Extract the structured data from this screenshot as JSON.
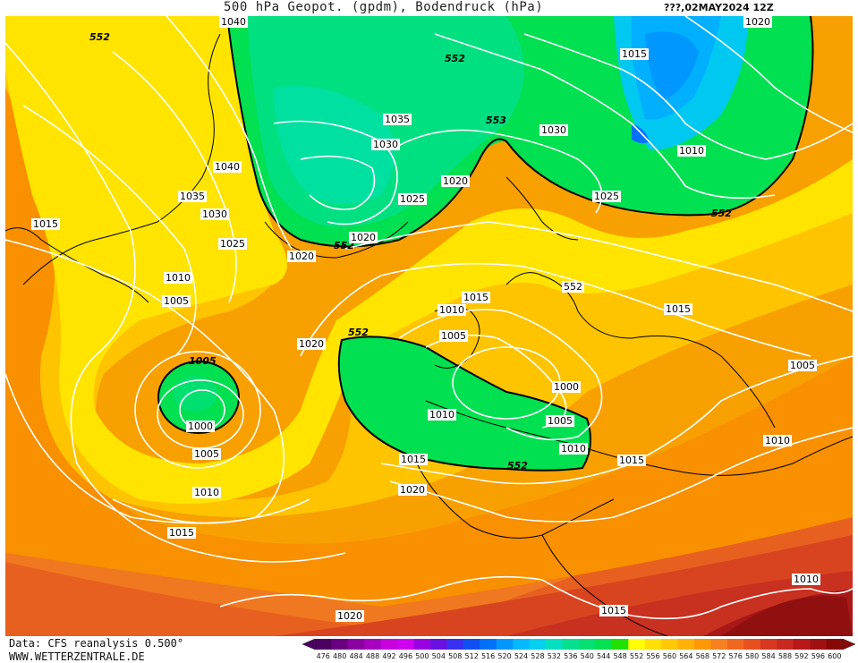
{
  "title": {
    "left": "500 hPa Geopot. (gpdm), Bodendruck (hPa)",
    "right": "???,02MAY2024 12Z"
  },
  "footer": {
    "source_line": "Data: CFS reanalysis 0.500°",
    "website": "WWW.WETTERZENTRALE.DE"
  },
  "colorbar": {
    "labels": [
      "476",
      "480",
      "484",
      "488",
      "492",
      "496",
      "500",
      "504",
      "508",
      "512",
      "516",
      "520",
      "524",
      "528",
      "532",
      "536",
      "540",
      "544",
      "548",
      "552",
      "556",
      "560",
      "564",
      "568",
      "572",
      "576",
      "580",
      "584",
      "588",
      "592",
      "596",
      "600"
    ],
    "colors": [
      "#4b0060",
      "#6a0080",
      "#8a00a0",
      "#a800c0",
      "#c800e0",
      "#d000f0",
      "#9a00e0",
      "#6a10e0",
      "#3a30f0",
      "#1050f0",
      "#0070ff",
      "#0098ff",
      "#00b8ff",
      "#00d0f0",
      "#00e0c0",
      "#00e090",
      "#00e070",
      "#00e050",
      "#20e000",
      "#ffff00",
      "#ffe000",
      "#ffc800",
      "#ffb000",
      "#ff9800",
      "#f88020",
      "#f06820",
      "#e85020",
      "#d83820",
      "#c82820",
      "#b81818",
      "#a01010",
      "#880808"
    ]
  },
  "isobar_labels": [
    {
      "text": "552"
    },
    {
      "text": "1040"
    },
    {
      "text": "552"
    },
    {
      "text": "1015"
    },
    {
      "text": "1005"
    },
    {
      "text": "1035"
    },
    {
      "text": "1030"
    },
    {
      "text": "553"
    },
    {
      "text": "1030"
    },
    {
      "text": "1040"
    },
    {
      "text": "1020"
    },
    {
      "text": "1010"
    },
    {
      "text": "1035"
    },
    {
      "text": "1025"
    },
    {
      "text": "1030"
    },
    {
      "text": "1025"
    },
    {
      "text": "552"
    },
    {
      "text": "1015"
    },
    {
      "text": "1025"
    },
    {
      "text": "1020"
    },
    {
      "text": "552"
    },
    {
      "text": "1020"
    },
    {
      "text": "1010"
    },
    {
      "text": "1020"
    },
    {
      "text": "1015"
    },
    {
      "text": "1005"
    },
    {
      "text": "1010"
    },
    {
      "text": "1015"
    },
    {
      "text": "1020"
    },
    {
      "text": "552"
    },
    {
      "text": "1005"
    },
    {
      "text": "552"
    },
    {
      "text": "1000"
    },
    {
      "text": "1005"
    },
    {
      "text": "1000"
    },
    {
      "text": "1010"
    },
    {
      "text": "1005"
    },
    {
      "text": "1010"
    },
    {
      "text": "1015"
    },
    {
      "text": "552"
    },
    {
      "text": "1015"
    },
    {
      "text": "1010"
    },
    {
      "text": "1005"
    },
    {
      "text": "1010"
    },
    {
      "text": "1020"
    },
    {
      "text": "1015"
    },
    {
      "text": "1010"
    },
    {
      "text": "1020"
    },
    {
      "text": "1015"
    }
  ]
}
